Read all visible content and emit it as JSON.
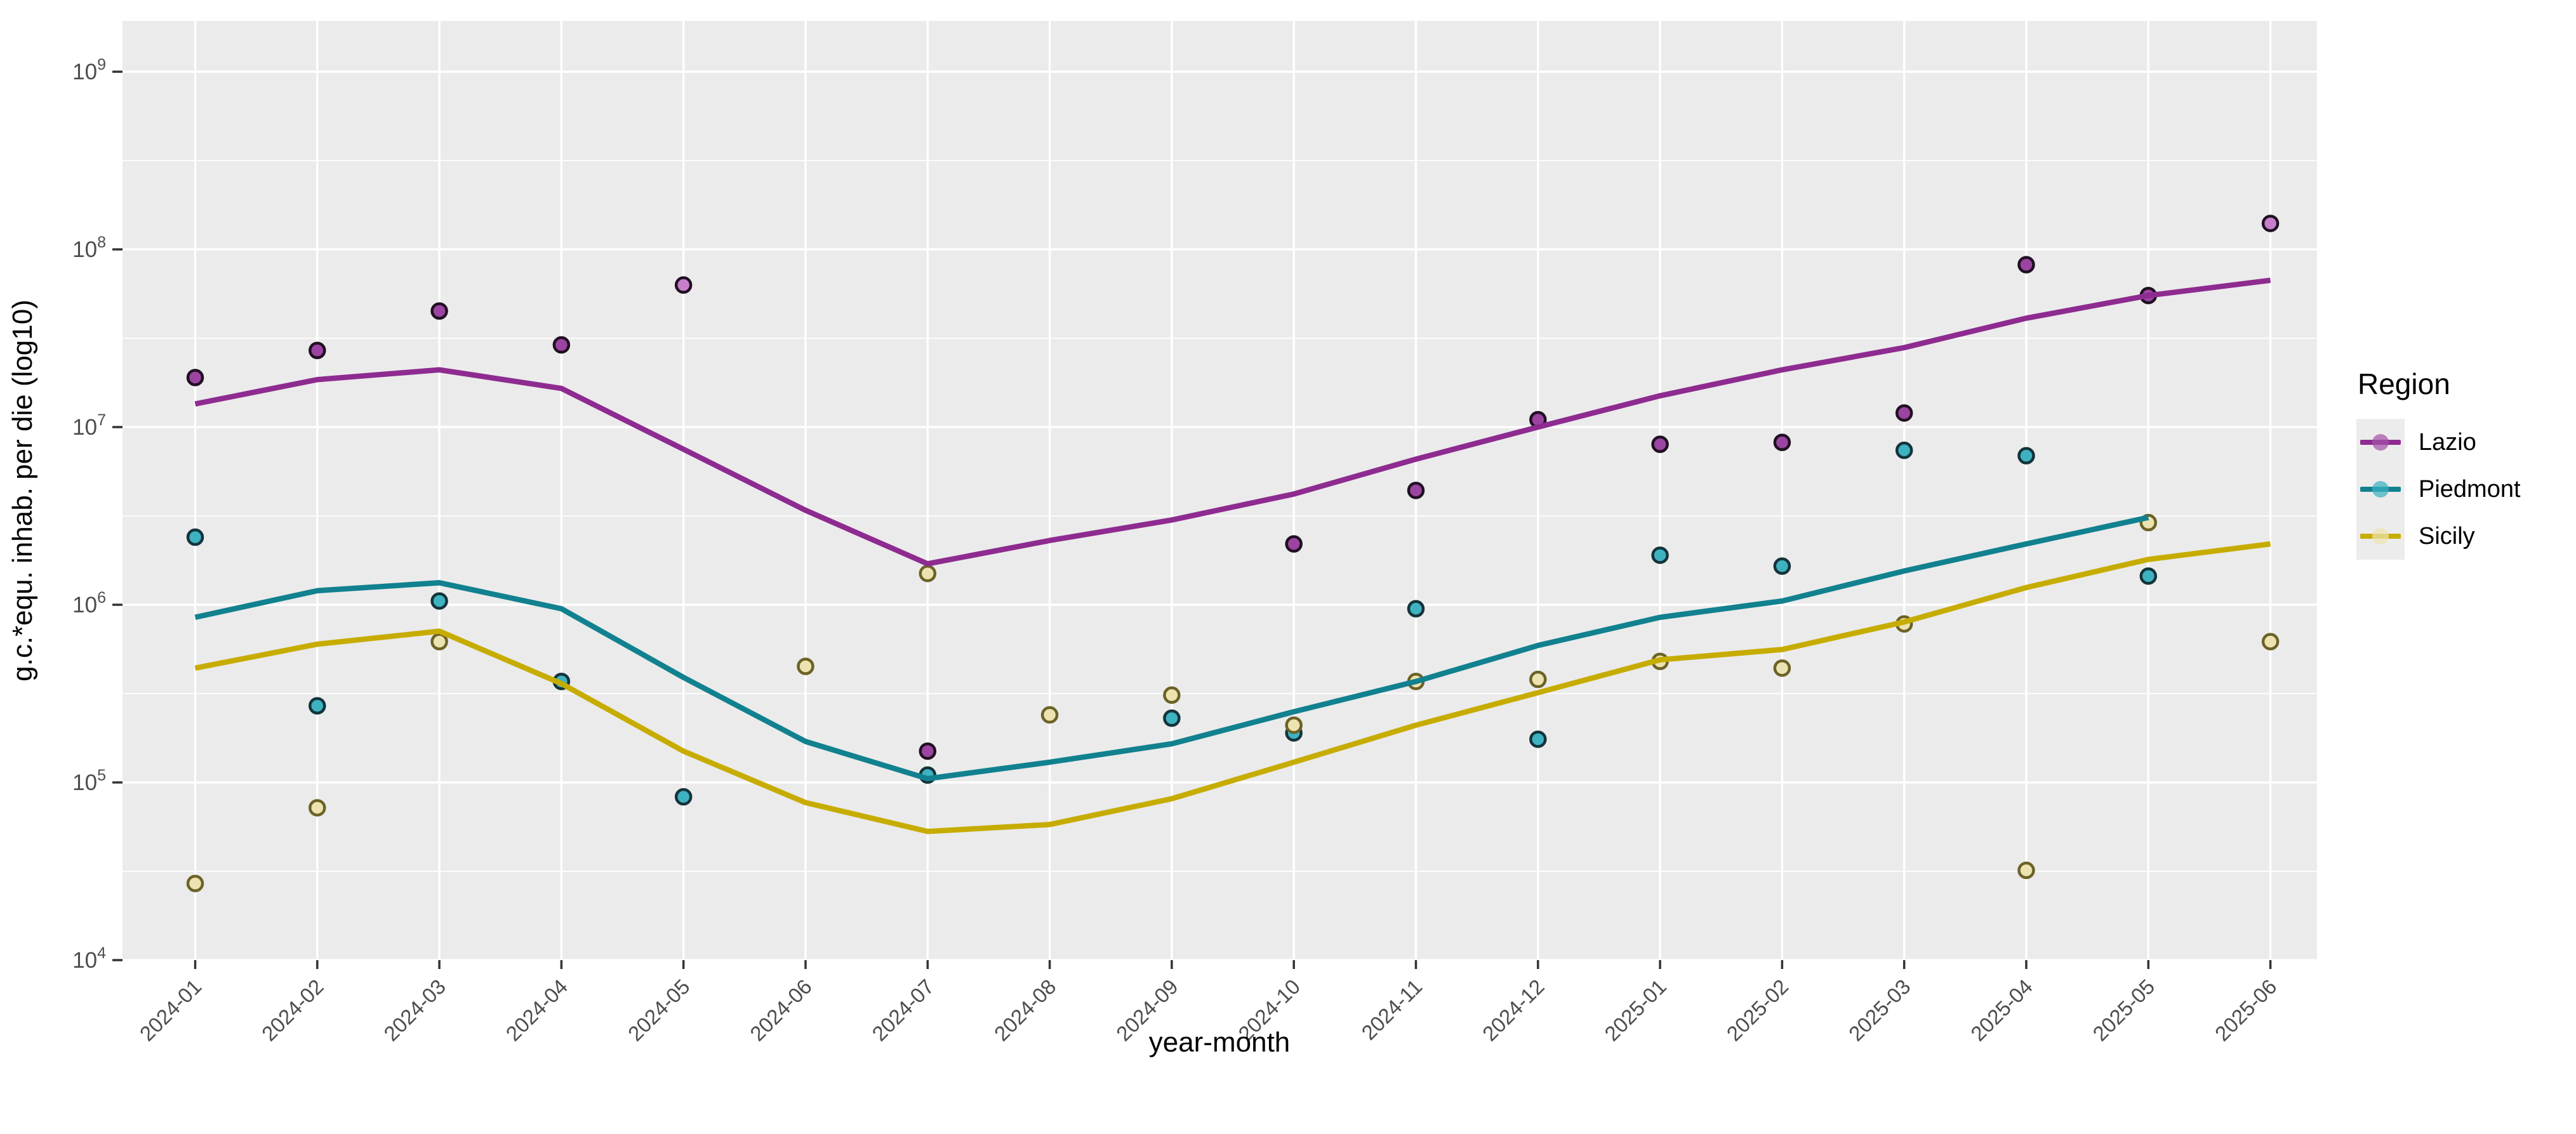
{
  "legend": {
    "title": "Region",
    "entries": [
      {
        "label": "Lazio",
        "color": "#8E2B90",
        "point_fill": "#A352A8"
      },
      {
        "label": "Piedmont",
        "color": "#11818F",
        "point_fill": "#3EB2C0"
      },
      {
        "label": "Sicily",
        "color": "#C7AC00",
        "point_fill": "#EDE3B0"
      }
    ]
  },
  "chart_data": {
    "type": "line",
    "subtype": "smoothed-lines-with-scatter-points",
    "title": "",
    "xlabel": "year-month",
    "ylabel": "g.c.*equ. inhab. per die (log10)",
    "x_scale": "categorical-monthly",
    "y_scale": "log10",
    "ylim": [
      10000,
      2000000000
    ],
    "y_breaks": [
      10000,
      100000,
      1000000,
      10000000,
      100000000,
      1000000000
    ],
    "y_break_exponents": [
      4,
      5,
      6,
      7,
      8,
      9
    ],
    "y_minor_breaks_exponents": [
      4.5,
      5.5,
      6.5,
      7.5,
      8.5
    ],
    "grid": "major-and-minor-horizontal, monthly-vertical, white on grey panel",
    "legend_position": "right",
    "categories": [
      "2024-01",
      "2024-02",
      "2024-03",
      "2024-04",
      "2024-05",
      "2024-06",
      "2024-07",
      "2024-08",
      "2024-09",
      "2024-10",
      "2024-11",
      "2024-12",
      "2025-01",
      "2025-02",
      "2025-03",
      "2025-04",
      "2025-05",
      "2025-06"
    ],
    "series": [
      {
        "name": "Lazio",
        "line_color": "#8E2B90",
        "point_fill": "#9C44A2",
        "point_stroke": "#201022",
        "light_point_fill": "#C77FCB",
        "light_point_months": [
          "2024-05",
          "2025-06"
        ],
        "line_values": [
          13500000,
          18500000,
          21000000,
          16500000,
          7500000,
          3400000,
          1700000,
          2300000,
          3000000,
          4200000,
          6600000,
          10000000,
          15000000,
          21000000,
          28000000,
          41000000,
          55000000,
          67000000
        ],
        "point_values": [
          19000000,
          27000000,
          45000000,
          29000000,
          63000000,
          null,
          150000,
          null,
          null,
          2200000,
          4400000,
          11000000,
          8000000,
          8200000,
          12000000,
          82000000,
          55000000,
          140000000
        ]
      },
      {
        "name": "Piedmont",
        "line_color": "#11818F",
        "point_fill": "#3EB2C0",
        "point_stroke": "#14333A",
        "line_values": [
          850000,
          1200000,
          1330000,
          950000,
          390000,
          170000,
          105000,
          130000,
          165000,
          250000,
          370000,
          590000,
          850000,
          1050000,
          1550000,
          2200000,
          3100000,
          null
        ],
        "point_values": [
          2400000,
          270000,
          1050000,
          370000,
          83000,
          null,
          110000,
          null,
          230000,
          190000,
          950000,
          175000,
          1900000,
          1650000,
          7400000,
          6900000,
          1450000,
          null
        ]
      },
      {
        "name": "Sicily",
        "line_color": "#C7AC00",
        "point_fill": "#EDE3B0",
        "point_stroke": "#6B6226",
        "line_values": [
          440000,
          600000,
          710000,
          360000,
          150000,
          77000,
          53000,
          58000,
          81000,
          130000,
          210000,
          320000,
          490000,
          560000,
          800000,
          1250000,
          1800000,
          2200000
        ],
        "point_values": [
          27000,
          72000,
          620000,
          null,
          null,
          450000,
          1500000,
          240000,
          310000,
          210000,
          370000,
          380000,
          480000,
          440000,
          780000,
          32000,
          2900000,
          620000
        ]
      }
    ],
    "style": {
      "panel_bg": "#EBEBEB",
      "grid_color": "#FFFFFF",
      "tick_label_color": "#4D4D4D",
      "axis_title_color": "#000000",
      "tick_color": "#333333"
    }
  }
}
